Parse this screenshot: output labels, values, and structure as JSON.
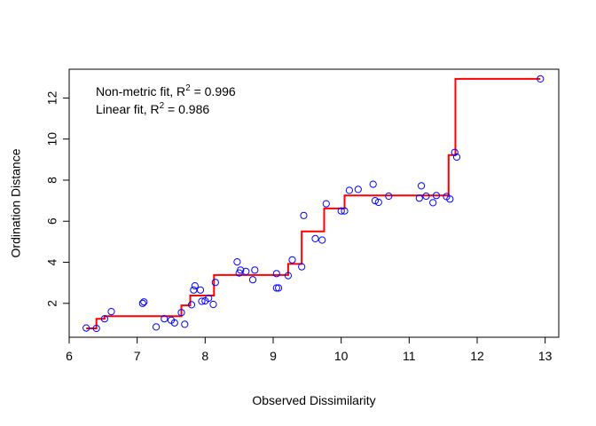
{
  "chart_data": {
    "type": "scatter",
    "title": "",
    "xlabel": "Observed Dissimilarity",
    "ylabel": "Ordination Distance",
    "xlim": [
      6.0,
      13.2
    ],
    "ylim": [
      0.35,
      13.4
    ],
    "x_ticks": [
      6,
      7,
      8,
      9,
      10,
      11,
      12,
      13
    ],
    "y_ticks": [
      2,
      4,
      6,
      8,
      10,
      12
    ],
    "grid": false,
    "legend": "none",
    "annotations": [
      {
        "prefix": "Non-metric fit, R",
        "sup": "2",
        "suffix": " = 0.996"
      },
      {
        "prefix": "Linear fit, R",
        "sup": "2",
        "suffix": " = 0.986"
      }
    ],
    "series": [
      {
        "kind": "points",
        "color": "#0000ff",
        "marker": "open-circle",
        "points": [
          [
            6.25,
            0.8
          ],
          [
            6.4,
            0.78
          ],
          [
            6.52,
            1.25
          ],
          [
            6.62,
            1.6
          ],
          [
            7.08,
            2.0
          ],
          [
            7.1,
            2.07
          ],
          [
            7.28,
            0.85
          ],
          [
            7.4,
            1.25
          ],
          [
            7.5,
            1.18
          ],
          [
            7.55,
            1.05
          ],
          [
            7.65,
            1.55
          ],
          [
            7.7,
            0.98
          ],
          [
            7.8,
            1.93
          ],
          [
            7.83,
            2.65
          ],
          [
            7.85,
            2.85
          ],
          [
            7.93,
            2.65
          ],
          [
            7.95,
            2.1
          ],
          [
            8.0,
            2.12
          ],
          [
            8.05,
            2.25
          ],
          [
            8.12,
            1.95
          ],
          [
            8.15,
            3.02
          ],
          [
            8.47,
            4.02
          ],
          [
            8.5,
            3.48
          ],
          [
            8.52,
            3.62
          ],
          [
            8.6,
            3.55
          ],
          [
            8.7,
            3.15
          ],
          [
            8.73,
            3.62
          ],
          [
            9.05,
            3.45
          ],
          [
            9.05,
            2.75
          ],
          [
            9.08,
            2.75
          ],
          [
            9.22,
            3.35
          ],
          [
            9.28,
            4.12
          ],
          [
            9.42,
            3.78
          ],
          [
            9.45,
            6.28
          ],
          [
            9.62,
            5.15
          ],
          [
            9.72,
            5.08
          ],
          [
            9.78,
            6.85
          ],
          [
            10.0,
            6.5
          ],
          [
            10.05,
            6.5
          ],
          [
            10.12,
            7.5
          ],
          [
            10.25,
            7.55
          ],
          [
            10.47,
            7.8
          ],
          [
            10.5,
            7.0
          ],
          [
            10.55,
            6.92
          ],
          [
            10.7,
            7.22
          ],
          [
            11.15,
            7.12
          ],
          [
            11.18,
            7.72
          ],
          [
            11.25,
            7.22
          ],
          [
            11.35,
            6.9
          ],
          [
            11.4,
            7.25
          ],
          [
            11.55,
            7.2
          ],
          [
            11.6,
            7.08
          ],
          [
            11.67,
            9.35
          ],
          [
            11.7,
            9.12
          ],
          [
            12.93,
            12.93
          ]
        ]
      },
      {
        "kind": "step",
        "color": "#ff0000",
        "steps": [
          [
            6.25,
            0.78
          ],
          [
            6.4,
            0.78
          ],
          [
            6.4,
            1.25
          ],
          [
            6.52,
            1.25
          ],
          [
            6.52,
            1.38
          ],
          [
            7.65,
            1.38
          ],
          [
            7.65,
            1.9
          ],
          [
            7.78,
            1.9
          ],
          [
            7.78,
            2.38
          ],
          [
            8.13,
            2.38
          ],
          [
            8.13,
            3.38
          ],
          [
            9.22,
            3.38
          ],
          [
            9.22,
            3.92
          ],
          [
            9.42,
            3.92
          ],
          [
            9.42,
            5.5
          ],
          [
            9.75,
            5.5
          ],
          [
            9.75,
            6.62
          ],
          [
            10.05,
            6.62
          ],
          [
            10.05,
            7.25
          ],
          [
            11.58,
            7.25
          ],
          [
            11.58,
            9.22
          ],
          [
            11.68,
            9.22
          ],
          [
            11.68,
            12.93
          ],
          [
            12.93,
            12.93
          ]
        ]
      }
    ]
  }
}
